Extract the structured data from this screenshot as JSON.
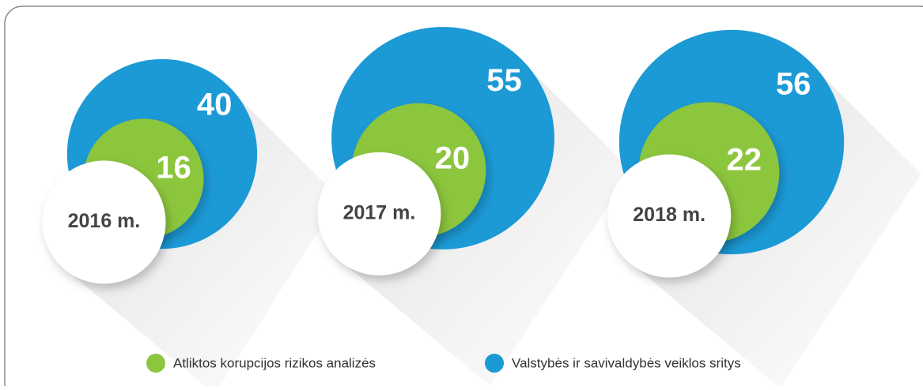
{
  "chart_data": {
    "type": "bubble",
    "categories": [
      "2016 m.",
      "2017 m.",
      "2018 m."
    ],
    "series": [
      {
        "name": "Atliktos korupcijos rizikos analizės",
        "color": "#8cc63e",
        "values": [
          16,
          20,
          22
        ]
      },
      {
        "name": "Valstybės ir savivaldybės veiklos sritys",
        "color": "#1c9ad6",
        "values": [
          40,
          55,
          56
        ]
      }
    ]
  }
}
